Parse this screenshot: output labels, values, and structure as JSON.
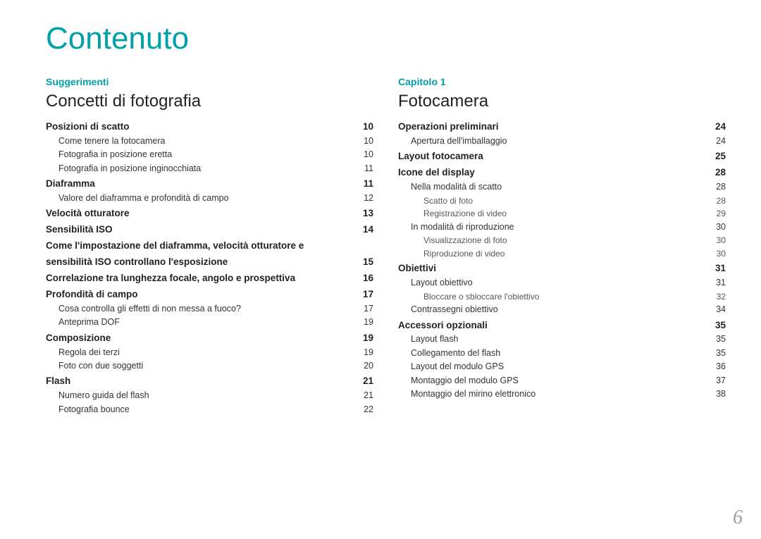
{
  "page_number": "6",
  "main_title": "Contenuto",
  "colors": {
    "accent": "#00a0a8",
    "page_number": "#9aa0a3",
    "text": "#222222",
    "subtext": "#555555",
    "background": "#ffffff"
  },
  "columns": [
    {
      "chapter_label": "Suggerimenti",
      "section_title": "Concetti di fotografia",
      "entries": [
        {
          "level": 0,
          "label": "Posizioni di scatto",
          "page": "10"
        },
        {
          "level": 1,
          "label": "Come tenere la fotocamera",
          "page": "10"
        },
        {
          "level": 1,
          "label": "Fotografia in posizione eretta",
          "page": "10"
        },
        {
          "level": 1,
          "label": "Fotografia in posizione inginocchiata",
          "page": "11"
        },
        {
          "level": 0,
          "label": "Diaframma",
          "page": "11"
        },
        {
          "level": 1,
          "label": "Valore del diaframma e profondità di campo",
          "page": "12"
        },
        {
          "level": 0,
          "label": "Velocità otturatore",
          "page": "13"
        },
        {
          "level": 0,
          "label": "Sensibilità ISO",
          "page": "14"
        },
        {
          "level": 0,
          "label": "Come l'impostazione del diaframma, velocità otturatore e sensibilità ISO controllano l'esposizione",
          "page": "15",
          "wrap_after": "e"
        },
        {
          "level": 0,
          "label": "Correlazione tra lunghezza focale, angolo e prospettiva",
          "page": "16"
        },
        {
          "level": 0,
          "label": "Profondità di campo",
          "page": "17"
        },
        {
          "level": 1,
          "label": "Cosa controlla gli effetti di non messa a fuoco?",
          "page": "17"
        },
        {
          "level": 1,
          "label": "Anteprima DOF",
          "page": "19"
        },
        {
          "level": 0,
          "label": "Composizione",
          "page": "19"
        },
        {
          "level": 1,
          "label": "Regola dei terzi",
          "page": "19"
        },
        {
          "level": 1,
          "label": "Foto con due soggetti",
          "page": "20"
        },
        {
          "level": 0,
          "label": "Flash",
          "page": "21"
        },
        {
          "level": 1,
          "label": "Numero guida del flash",
          "page": "21"
        },
        {
          "level": 1,
          "label": "Fotografia bounce",
          "page": "22"
        }
      ]
    },
    {
      "chapter_label": "Capitolo 1",
      "section_title": "Fotocamera",
      "entries": [
        {
          "level": 0,
          "label": "Operazioni preliminari",
          "page": "24"
        },
        {
          "level": 1,
          "label": "Apertura dell'imballaggio",
          "page": "24"
        },
        {
          "level": 0,
          "label": "Layout fotocamera",
          "page": "25"
        },
        {
          "level": 0,
          "label": "Icone del display",
          "page": "28"
        },
        {
          "level": 1,
          "label": "Nella modalità di scatto",
          "page": "28"
        },
        {
          "level": 2,
          "label": "Scatto di foto",
          "page": "28"
        },
        {
          "level": 2,
          "label": "Registrazione di video",
          "page": "29"
        },
        {
          "level": 1,
          "label": "In modalità di riproduzione",
          "page": "30"
        },
        {
          "level": 2,
          "label": "Visualizzazione di foto",
          "page": "30"
        },
        {
          "level": 2,
          "label": "Riproduzione di video",
          "page": "30"
        },
        {
          "level": 0,
          "label": "Obiettivi",
          "page": "31"
        },
        {
          "level": 1,
          "label": "Layout obiettivo",
          "page": "31"
        },
        {
          "level": 2,
          "label": "Bloccare o sbloccare l'obiettivo",
          "page": "32"
        },
        {
          "level": 1,
          "label": "Contrassegni obiettivo",
          "page": "34"
        },
        {
          "level": 0,
          "label": "Accessori opzionali",
          "page": "35"
        },
        {
          "level": 1,
          "label": "Layout flash",
          "page": "35"
        },
        {
          "level": 1,
          "label": "Collegamento del flash",
          "page": "35"
        },
        {
          "level": 1,
          "label": "Layout del modulo GPS",
          "page": "36"
        },
        {
          "level": 1,
          "label": "Montaggio del modulo GPS",
          "page": "37"
        },
        {
          "level": 1,
          "label": "Montaggio del mirino elettronico",
          "page": "38"
        }
      ]
    }
  ]
}
